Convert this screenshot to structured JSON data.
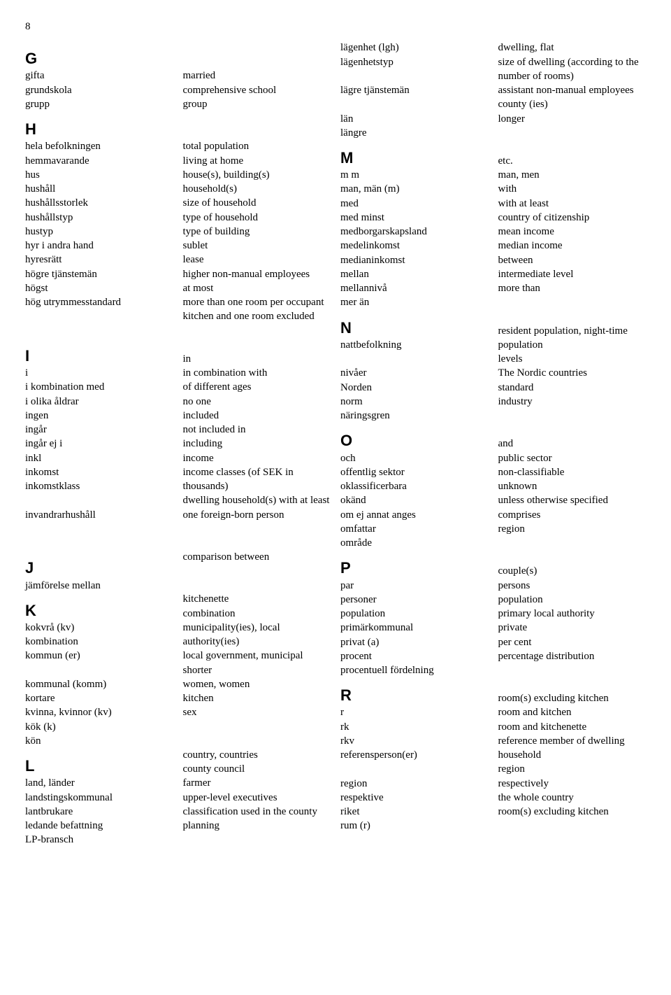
{
  "page_number": "8",
  "left": {
    "G": [
      [
        "gifta",
        "married"
      ],
      [
        "grundskola",
        "comprehensive school"
      ],
      [
        "grupp",
        "group"
      ]
    ],
    "H": [
      [
        "hela befolkningen",
        "total population"
      ],
      [
        "hemmavarande",
        "living at home"
      ],
      [
        "hus",
        "house(s), building(s)"
      ],
      [
        "hushåll",
        "household(s)"
      ],
      [
        "hushållsstorlek",
        "size of household"
      ],
      [
        "hushållstyp",
        "type of household"
      ],
      [
        "hustyp",
        "type of building"
      ],
      [
        "hyr i andra hand",
        "sublet"
      ],
      [
        "hyresrätt",
        "lease"
      ],
      [
        "högre tjänstemän",
        "higher non-manual employees"
      ],
      [
        "högst",
        "at most"
      ],
      [
        "hög utrymmesstandard",
        "more than one room per occupant kitchen and one room excluded"
      ]
    ],
    "I": [
      [
        "i",
        "in"
      ],
      [
        "i kombination med",
        "in combination with"
      ],
      [
        "i olika åldrar",
        "of different ages"
      ],
      [
        "ingen",
        "no one"
      ],
      [
        "ingår",
        "included"
      ],
      [
        "ingår ej i",
        "not included in"
      ],
      [
        "inkl",
        "including"
      ],
      [
        "inkomst",
        "income"
      ],
      [
        "inkomstklass",
        "income classes (of SEK in thousands)"
      ],
      [
        "invandrarhushåll",
        "dwelling household(s) with at least one foreign-born person"
      ]
    ],
    "J": [
      [
        "jämförelse mellan",
        "comparison between"
      ]
    ],
    "K": [
      [
        "kokvrå (kv)",
        "kitchenette"
      ],
      [
        "kombination",
        "combination"
      ],
      [
        "kommun (er)",
        "municipality(ies), local authority(ies)"
      ],
      [
        "kommunal (komm)",
        "local government, municipal"
      ],
      [
        "kortare",
        "shorter"
      ],
      [
        "kvinna, kvinnor (kv)",
        "women, women"
      ],
      [
        "kök (k)",
        "kitchen"
      ],
      [
        "kön",
        "sex"
      ]
    ],
    "L": [
      [
        "land, länder",
        "country, countries"
      ],
      [
        "landstingskommunal",
        "county council"
      ],
      [
        "lantbrukare",
        "farmer"
      ],
      [
        "ledande befattning",
        "upper-level executives"
      ],
      [
        "LP-bransch",
        "classification used in the county planning"
      ]
    ]
  },
  "right": {
    "_pre": [
      [
        "lägenhet (lgh)",
        "dwelling, flat"
      ],
      [
        "lägenhetstyp",
        "size of dwelling (according to the number of rooms)"
      ],
      [
        "lägre tjänstemän",
        "assistant non-manual employees"
      ],
      [
        "län",
        "county (ies)"
      ],
      [
        "längre",
        "longer"
      ]
    ],
    "M": [
      [
        "m m",
        "etc."
      ],
      [
        "man, män (m)",
        "man, men"
      ],
      [
        "med",
        "with"
      ],
      [
        "med minst",
        "with at least"
      ],
      [
        "medborgarskapsland",
        "country of citizenship"
      ],
      [
        "medelinkomst",
        "mean income"
      ],
      [
        "medianinkomst",
        "median income"
      ],
      [
        "mellan",
        "between"
      ],
      [
        "mellannivå",
        "intermediate level"
      ],
      [
        "mer än",
        "more than"
      ]
    ],
    "N": [
      [
        "nattbefolkning",
        "resident population, night-time population"
      ],
      [
        "nivåer",
        "levels"
      ],
      [
        "Norden",
        "The Nordic countries"
      ],
      [
        "norm",
        "standard"
      ],
      [
        "näringsgren",
        "industry"
      ]
    ],
    "O": [
      [
        "och",
        "and"
      ],
      [
        "offentlig sektor",
        "public sector"
      ],
      [
        "oklassificerbara",
        "non-classifiable"
      ],
      [
        "okänd",
        "unknown"
      ],
      [
        "om ej annat anges",
        "unless otherwise specified"
      ],
      [
        "omfattar",
        "comprises"
      ],
      [
        "område",
        "region"
      ]
    ],
    "P": [
      [
        "par",
        "couple(s)"
      ],
      [
        "personer",
        "persons"
      ],
      [
        "population",
        "population"
      ],
      [
        "primärkommunal",
        "primary local authority"
      ],
      [
        "privat (a)",
        "private"
      ],
      [
        "procent",
        "per cent"
      ],
      [
        "procentuell fördelning",
        "percentage distribution"
      ]
    ],
    "R": [
      [
        "r",
        "room(s) excluding kitchen"
      ],
      [
        "rk",
        "room and kitchen"
      ],
      [
        "rkv",
        "room and kitchenette"
      ],
      [
        "referensperson(er)",
        "reference member of dwelling household"
      ],
      [
        "region",
        "region"
      ],
      [
        "respektive",
        "respectively"
      ],
      [
        "riket",
        "the whole country"
      ],
      [
        "rum (r)",
        "room(s) excluding kitchen"
      ]
    ]
  }
}
